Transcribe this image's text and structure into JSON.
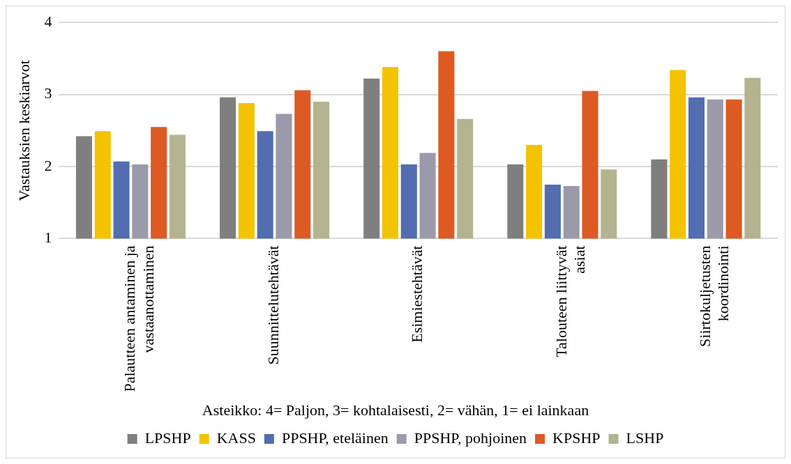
{
  "chart_data": {
    "type": "bar",
    "ylabel": "Vastauksien keskiarvot",
    "categories": [
      "Palautteen antaminen ja vastaanottaminen",
      "Suunnittelutehtävät",
      "Esimiestehtävät",
      "Talouteen liittyvät asiat",
      "Siirtokuljetusten koordinointi"
    ],
    "series": [
      {
        "name": "LPSHP",
        "color": "#7f7f7f",
        "values": [
          2.42,
          2.96,
          3.22,
          2.03,
          2.1
        ]
      },
      {
        "name": "KASS",
        "color": "#f4c300",
        "values": [
          2.49,
          2.88,
          3.38,
          2.3,
          3.34
        ]
      },
      {
        "name": "PPSHP, eteläinen",
        "color": "#526db0",
        "values": [
          2.07,
          2.49,
          2.03,
          1.75,
          2.96
        ]
      },
      {
        "name": "PPSHP, pohjoinen",
        "color": "#9a9aab",
        "values": [
          2.03,
          2.73,
          2.19,
          1.73,
          2.93
        ]
      },
      {
        "name": "KPSHP",
        "color": "#dd5a22",
        "values": [
          2.55,
          3.06,
          3.6,
          3.05,
          2.93
        ]
      },
      {
        "name": "LSHP",
        "color": "#b3b390",
        "values": [
          2.44,
          2.9,
          2.66,
          1.96,
          3.23
        ]
      }
    ],
    "ylim": [
      1,
      4
    ],
    "yticks": [
      1,
      2,
      3,
      4
    ],
    "grid": "y",
    "legend": "bottom",
    "annotations": [
      "Asteikko: 4= Paljon, 3= kohtalaisesti, 2= vähän, 1= ei lainkaan"
    ]
  }
}
